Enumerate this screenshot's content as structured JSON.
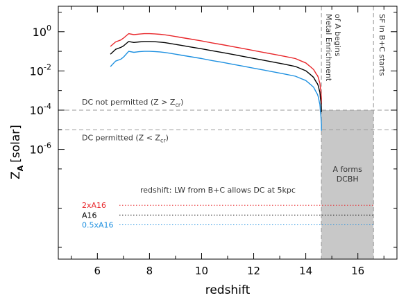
{
  "chart_data": {
    "type": "line",
    "xlabel": "redshift",
    "ylabel_main": "Z",
    "ylabel_sub": "A",
    "ylabel_unit": "[solar]",
    "xlim": [
      4.5,
      17.5
    ],
    "ylim_log10": [
      -11.6,
      1.3
    ],
    "y_scale": "log",
    "grid": false,
    "x_ticks": [
      {
        "value": 6,
        "label": "6"
      },
      {
        "value": 8,
        "label": "8"
      },
      {
        "value": 10,
        "label": "10"
      },
      {
        "value": 12,
        "label": "12"
      },
      {
        "value": 14,
        "label": "14"
      },
      {
        "value": 16,
        "label": "16"
      }
    ],
    "y_ticks": [
      {
        "value": 0,
        "base": "10",
        "exp": "0"
      },
      {
        "value": -2,
        "base": "10",
        "exp": "-2"
      },
      {
        "value": -4,
        "base": "10",
        "exp": "-4"
      },
      {
        "value": -6,
        "base": "10",
        "exp": "-6"
      }
    ],
    "series": [
      {
        "name": "2xA16",
        "color": "#e8262a",
        "log_y": [
          -0.75,
          -0.52,
          -0.42,
          -0.33,
          -0.1,
          -0.15,
          -0.12,
          -0.1,
          -0.1,
          -0.11,
          -0.13,
          -0.16,
          -0.2,
          -0.29,
          -0.38,
          -0.47,
          -0.57,
          -0.66,
          -0.76,
          -0.86,
          -0.96,
          -1.06,
          -1.16,
          -1.26,
          -1.37,
          -1.48,
          -1.59,
          -1.7,
          -1.81,
          -1.93,
          -2.04,
          -2.15,
          -2.24,
          -2.33,
          -2.43,
          -2.53,
          -2.62,
          -2.72,
          -2.85,
          -3.05,
          -3.25,
          -3.4,
          -3.7
        ],
        "x": [
          6.5,
          6.7,
          6.9,
          7.0,
          7.2,
          7.4,
          7.6,
          7.8,
          8.0,
          8.2,
          8.4,
          8.6,
          8.8,
          9.2,
          9.6,
          10.0,
          10.4,
          10.8,
          11.2,
          11.6,
          12.0,
          12.4,
          12.8,
          13.2,
          13.6,
          13.8,
          14.0,
          14.1,
          14.2,
          14.3,
          14.35,
          14.4,
          14.45,
          14.48,
          14.5,
          14.52,
          14.54,
          14.55,
          14.56,
          14.58,
          14.59,
          14.6,
          14.6
        ]
      },
      {
        "name": "A16",
        "color": "#000000",
        "log_y": [
          -1.15,
          -0.9,
          -0.8,
          -0.73,
          -0.5,
          -0.55,
          -0.52,
          -0.5,
          -0.5,
          -0.51,
          -0.53,
          -0.56,
          -0.6,
          -0.69,
          -0.78,
          -0.87,
          -0.97,
          -1.06,
          -1.16,
          -1.26,
          -1.36,
          -1.46,
          -1.56,
          -1.66,
          -1.77,
          -1.88,
          -1.99,
          -2.1,
          -2.21,
          -2.33,
          -2.45,
          -2.56,
          -2.66,
          -2.76,
          -2.87,
          -2.98,
          -3.08,
          -3.2,
          -3.35,
          -3.55,
          -3.75,
          -3.9,
          -4.1
        ],
        "x": [
          6.5,
          6.7,
          6.9,
          7.0,
          7.2,
          7.4,
          7.6,
          7.8,
          8.0,
          8.2,
          8.4,
          8.6,
          8.8,
          9.2,
          9.6,
          10.0,
          10.4,
          10.8,
          11.2,
          11.6,
          12.0,
          12.4,
          12.8,
          13.2,
          13.6,
          13.8,
          14.0,
          14.1,
          14.2,
          14.3,
          14.35,
          14.4,
          14.45,
          14.48,
          14.5,
          14.52,
          14.54,
          14.55,
          14.56,
          14.58,
          14.59,
          14.6,
          14.6
        ]
      },
      {
        "name": "0.5xA16",
        "color": "#1e90e0",
        "log_y": [
          -1.78,
          -1.5,
          -1.4,
          -1.3,
          -1.0,
          -1.05,
          -1.02,
          -1.0,
          -1.0,
          -1.01,
          -1.03,
          -1.06,
          -1.1,
          -1.19,
          -1.28,
          -1.37,
          -1.47,
          -1.56,
          -1.66,
          -1.76,
          -1.86,
          -1.96,
          -2.06,
          -2.16,
          -2.27,
          -2.38,
          -2.49,
          -2.6,
          -2.71,
          -2.83,
          -2.96,
          -3.08,
          -3.2,
          -3.32,
          -3.45,
          -3.58,
          -3.7,
          -3.85,
          -4.05,
          -4.3,
          -4.55,
          -4.75,
          -5.05
        ],
        "x": [
          6.5,
          6.7,
          6.9,
          7.0,
          7.2,
          7.4,
          7.6,
          7.8,
          8.0,
          8.2,
          8.4,
          8.6,
          8.8,
          9.2,
          9.6,
          10.0,
          10.4,
          10.8,
          11.2,
          11.6,
          12.0,
          12.4,
          12.8,
          13.2,
          13.6,
          13.8,
          14.0,
          14.1,
          14.2,
          14.3,
          14.35,
          14.4,
          14.45,
          14.48,
          14.5,
          14.52,
          14.54,
          14.55,
          14.56,
          14.58,
          14.59,
          14.6,
          14.6
        ]
      }
    ],
    "hlines": [
      {
        "log_y": -4,
        "label": "DC not permitted (Z > Z",
        "sub": "cr",
        "suffix": ")"
      },
      {
        "log_y": -5,
        "label": "DC permitted (Z < Z",
        "sub": "cr",
        "suffix": ")"
      }
    ],
    "vlines": [
      {
        "x": 14.6,
        "label_lines": [
          "Metal Enrichment",
          "of A begins"
        ]
      },
      {
        "x": 16.6,
        "label_lines": [
          "SF in B+C starts"
        ]
      }
    ],
    "shaded_region": {
      "x": [
        14.6,
        16.6
      ],
      "log_y_top": -4,
      "color": "#c8c8c8",
      "label_lines": [
        "A forms",
        "DCBH"
      ]
    },
    "legend": {
      "title": "redshift: LW from B+C allows DC at 5kpc",
      "entries": [
        {
          "name": "2xA16",
          "color": "#e8262a",
          "log_y": -8.85
        },
        {
          "name": "A16",
          "color": "#000000",
          "log_y": -9.35
        },
        {
          "name": "0.5xA16",
          "color": "#1e90e0",
          "log_y": -9.85
        }
      ]
    }
  }
}
